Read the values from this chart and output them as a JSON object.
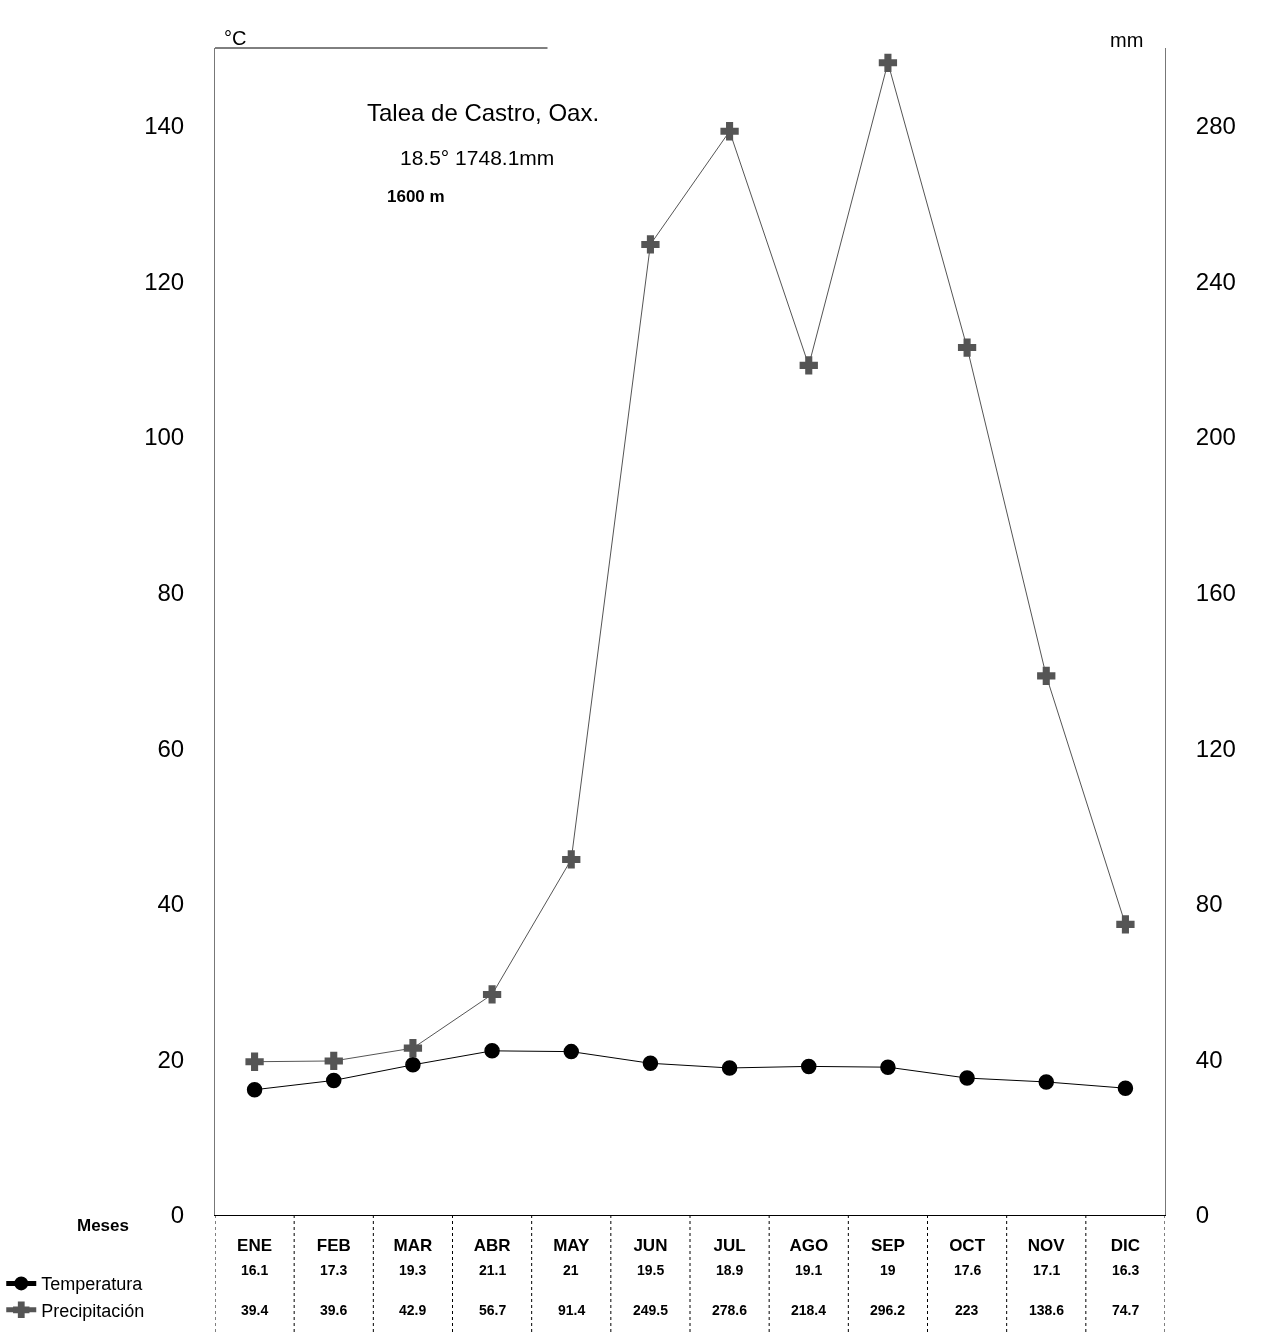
{
  "chart_data": {
    "type": "line",
    "title": "Talea de Castro, Oax.",
    "subtitle": "18.5° 1748.1mm",
    "annotations": [
      "1600 m",
      "Meses"
    ],
    "ylabel": "°C",
    "y2label": "mm",
    "categories": [
      "ENE",
      "FEB",
      "MAR",
      "ABR",
      "MAY",
      "JUN",
      "JUL",
      "AGO",
      "SEP",
      "OCT",
      "NOV",
      "DIC"
    ],
    "series": [
      {
        "name": "Temperatura",
        "color": "#000000",
        "marker": "circle",
        "values": [
          16.1,
          17.3,
          19.3,
          21.1,
          21,
          19.5,
          18.9,
          19.1,
          19,
          17.6,
          17.1,
          16.3
        ]
      },
      {
        "name": "Precipitación",
        "color": "#555555",
        "marker": "cross",
        "axis": "y2",
        "values": [
          39.4,
          39.6,
          42.9,
          56.7,
          91.4,
          249.5,
          278.6,
          218.4,
          296.2,
          223,
          138.6,
          74.7
        ]
      }
    ],
    "ylim": [
      0,
      150
    ],
    "yticks": [
      0,
      20,
      40,
      60,
      80,
      100,
      120,
      140
    ],
    "y2lim": [
      0,
      300
    ],
    "y2ticks": [
      0,
      40,
      80,
      120,
      160,
      200,
      240,
      280
    ],
    "data_labels": true,
    "legend": "bottom left"
  }
}
